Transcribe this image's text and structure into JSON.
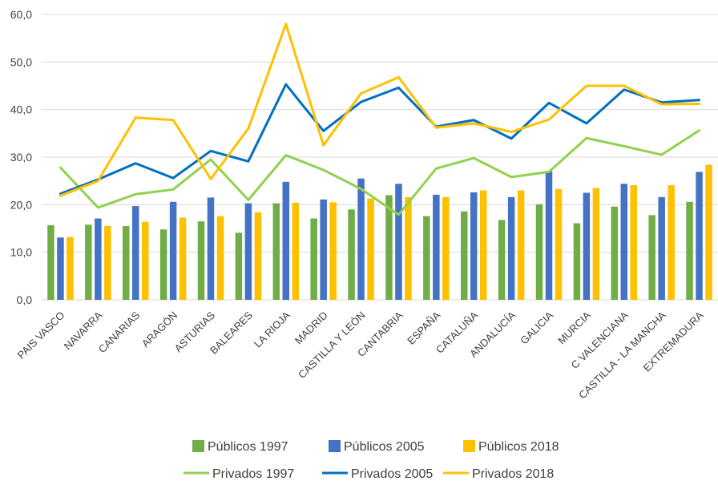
{
  "chart_data": {
    "type": "bar",
    "categories": [
      "PAIS VASCO",
      "NAVARRA",
      "CANARIAS",
      "ARAGÓN",
      "ASTURIAS",
      "BALEARES",
      "LA RIOJA",
      "MADRID",
      "CASTILLA Y LEÓN",
      "CANTABRIA",
      "ESPAÑA",
      "CATALUÑA",
      "ANDALUCÍA",
      "GALICIA",
      "MURCIA",
      "C VALENCIANA",
      "CASTILLA - LA MANCHA",
      "EXTREMADURA"
    ],
    "ylim": [
      0,
      60
    ],
    "yticks": [
      0,
      10,
      20,
      30,
      40,
      50,
      60
    ],
    "ytick_labels": [
      "0,0",
      "10,0",
      "20,0",
      "30,0",
      "40,0",
      "50,0",
      "60,0"
    ],
    "grid": true,
    "legend_position": "bottom",
    "bar_series": [
      {
        "name": "Públicos 1997",
        "color": "#70ad47",
        "values": [
          15.7,
          15.8,
          15.5,
          14.8,
          16.5,
          14.1,
          20.3,
          17.1,
          19.0,
          22.0,
          17.6,
          18.6,
          16.8,
          20.1,
          16.1,
          19.6,
          17.8,
          20.6
        ]
      },
      {
        "name": "Públicos 2005",
        "color": "#4472c4",
        "values": [
          13.1,
          17.1,
          19.7,
          20.6,
          21.5,
          20.3,
          24.8,
          21.1,
          25.5,
          24.4,
          22.1,
          22.6,
          21.6,
          27.1,
          22.5,
          24.4,
          21.6,
          26.9
        ]
      },
      {
        "name": "Públicos 2018",
        "color": "#ffc000",
        "values": [
          13.2,
          15.5,
          16.4,
          17.3,
          17.6,
          18.4,
          20.4,
          20.5,
          21.3,
          21.6,
          21.6,
          23.0,
          23.0,
          23.3,
          23.5,
          24.1,
          24.1,
          28.4
        ]
      }
    ],
    "line_series": [
      {
        "name": "Privados 1997",
        "color": "#92d050",
        "values": [
          27.8,
          19.4,
          22.2,
          23.2,
          29.5,
          21.0,
          30.4,
          27.3,
          23.3,
          17.9,
          27.6,
          29.8,
          25.8,
          26.9,
          34.0,
          32.3,
          30.5,
          35.6
        ]
      },
      {
        "name": "Privados 2005",
        "color": "#0070c0",
        "values": [
          22.3,
          25.3,
          28.7,
          25.6,
          31.3,
          29.1,
          45.3,
          35.5,
          41.6,
          44.6,
          36.4,
          37.8,
          33.9,
          41.4,
          37.1,
          44.2,
          41.5,
          42.0
        ]
      },
      {
        "name": "Privados 2018",
        "color": "#ffc000",
        "values": [
          21.9,
          25.0,
          38.3,
          37.8,
          25.4,
          36.0,
          58.0,
          32.5,
          43.4,
          46.8,
          36.2,
          37.1,
          35.3,
          37.9,
          45.0,
          45.0,
          41.1,
          41.2
        ]
      }
    ]
  }
}
